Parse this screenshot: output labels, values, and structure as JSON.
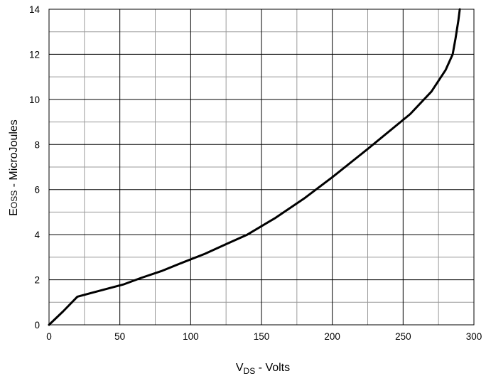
{
  "chart_data": {
    "type": "line",
    "title": "",
    "xlabel_main": "V",
    "xlabel_sub": "DS",
    "xlabel_rest": " - Volts",
    "ylabel_main": "E",
    "ylabel_sub": "OSS",
    "ylabel_rest": " - MicroJoules",
    "xlim": [
      0,
      300
    ],
    "ylim": [
      0,
      14
    ],
    "x_ticks": [
      "0",
      "50",
      "100",
      "150",
      "200",
      "250",
      "300"
    ],
    "y_ticks": [
      "0",
      "2",
      "4",
      "6",
      "8",
      "10",
      "12",
      "14"
    ],
    "x_major_step": 50,
    "x_minor_step": 25,
    "y_major_step": 2,
    "y_minor_step": 1,
    "grid": true,
    "series": [
      {
        "color": "#000000",
        "x": [
          0,
          10,
          20,
          35,
          53,
          65,
          80,
          95,
          110,
          125,
          140,
          160,
          180,
          200,
          225,
          255,
          270,
          280,
          285,
          287,
          289,
          290
        ],
        "y": [
          0,
          0.6,
          1.25,
          1.5,
          1.8,
          2.08,
          2.4,
          2.78,
          3.15,
          3.58,
          4.0,
          4.75,
          5.6,
          6.55,
          7.8,
          9.35,
          10.35,
          11.3,
          12.0,
          12.7,
          13.5,
          14.0
        ]
      }
    ]
  }
}
